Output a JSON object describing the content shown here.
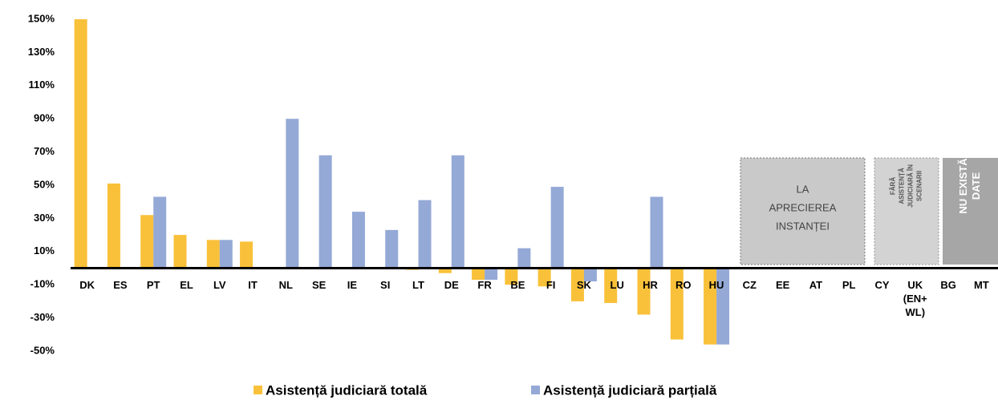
{
  "chart_data": {
    "type": "bar",
    "categories": [
      "DK",
      "ES",
      "PT",
      "EL",
      "LV",
      "IT",
      "NL",
      "SE",
      "IE",
      "SI",
      "LT",
      "DE",
      "FR",
      "BE",
      "FI",
      "SK",
      "LU",
      "HR",
      "RO",
      "HU",
      "CZ",
      "EE",
      "AT",
      "PL",
      "CY",
      "UK (EN+ WL)",
      "BG",
      "MT"
    ],
    "series": [
      {
        "name": "Asistență judiciară totală",
        "color": "#f9c13a",
        "values": [
          150,
          51,
          32,
          20,
          17,
          16,
          null,
          null,
          null,
          null,
          -1,
          -3,
          -7,
          -10,
          -11,
          -20,
          -21,
          -28,
          -43,
          -46,
          null,
          null,
          null,
          null,
          null,
          null,
          null,
          null
        ]
      },
      {
        "name": "Asistență judiciară parțială",
        "color": "#94a9d6",
        "values": [
          null,
          null,
          43,
          null,
          17,
          null,
          90,
          68,
          34,
          23,
          41,
          68,
          -7,
          12,
          49,
          -8,
          null,
          43,
          null,
          -46,
          null,
          null,
          null,
          null,
          null,
          null,
          null,
          null
        ]
      }
    ],
    "ylim": [
      -50,
      150
    ],
    "yticks": [
      {
        "value": -50,
        "label": "-50%"
      },
      {
        "value": -30,
        "label": "-30%"
      },
      {
        "value": -10,
        "label": "-10%"
      },
      {
        "value": 10,
        "label": "10%"
      },
      {
        "value": 30,
        "label": "30%"
      },
      {
        "value": 50,
        "label": "50%"
      },
      {
        "value": 70,
        "label": "70%"
      },
      {
        "value": 90,
        "label": "90%"
      },
      {
        "value": 110,
        "label": "110%"
      },
      {
        "value": 130,
        "label": "130%"
      },
      {
        "value": 150,
        "label": "150%"
      }
    ],
    "grid": false,
    "legend": "bottom",
    "annotations": [
      {
        "lines": [
          "LA",
          "APRECIEREA",
          "INSTANȚEI"
        ]
      },
      {
        "lines": [
          "FĂRĂ",
          "ASISTENȚĂ",
          "JUDICIARĂ ÎN",
          "SCENARII"
        ]
      },
      {
        "lines": [
          "NU EXISTĂ",
          "DATE"
        ]
      }
    ]
  }
}
